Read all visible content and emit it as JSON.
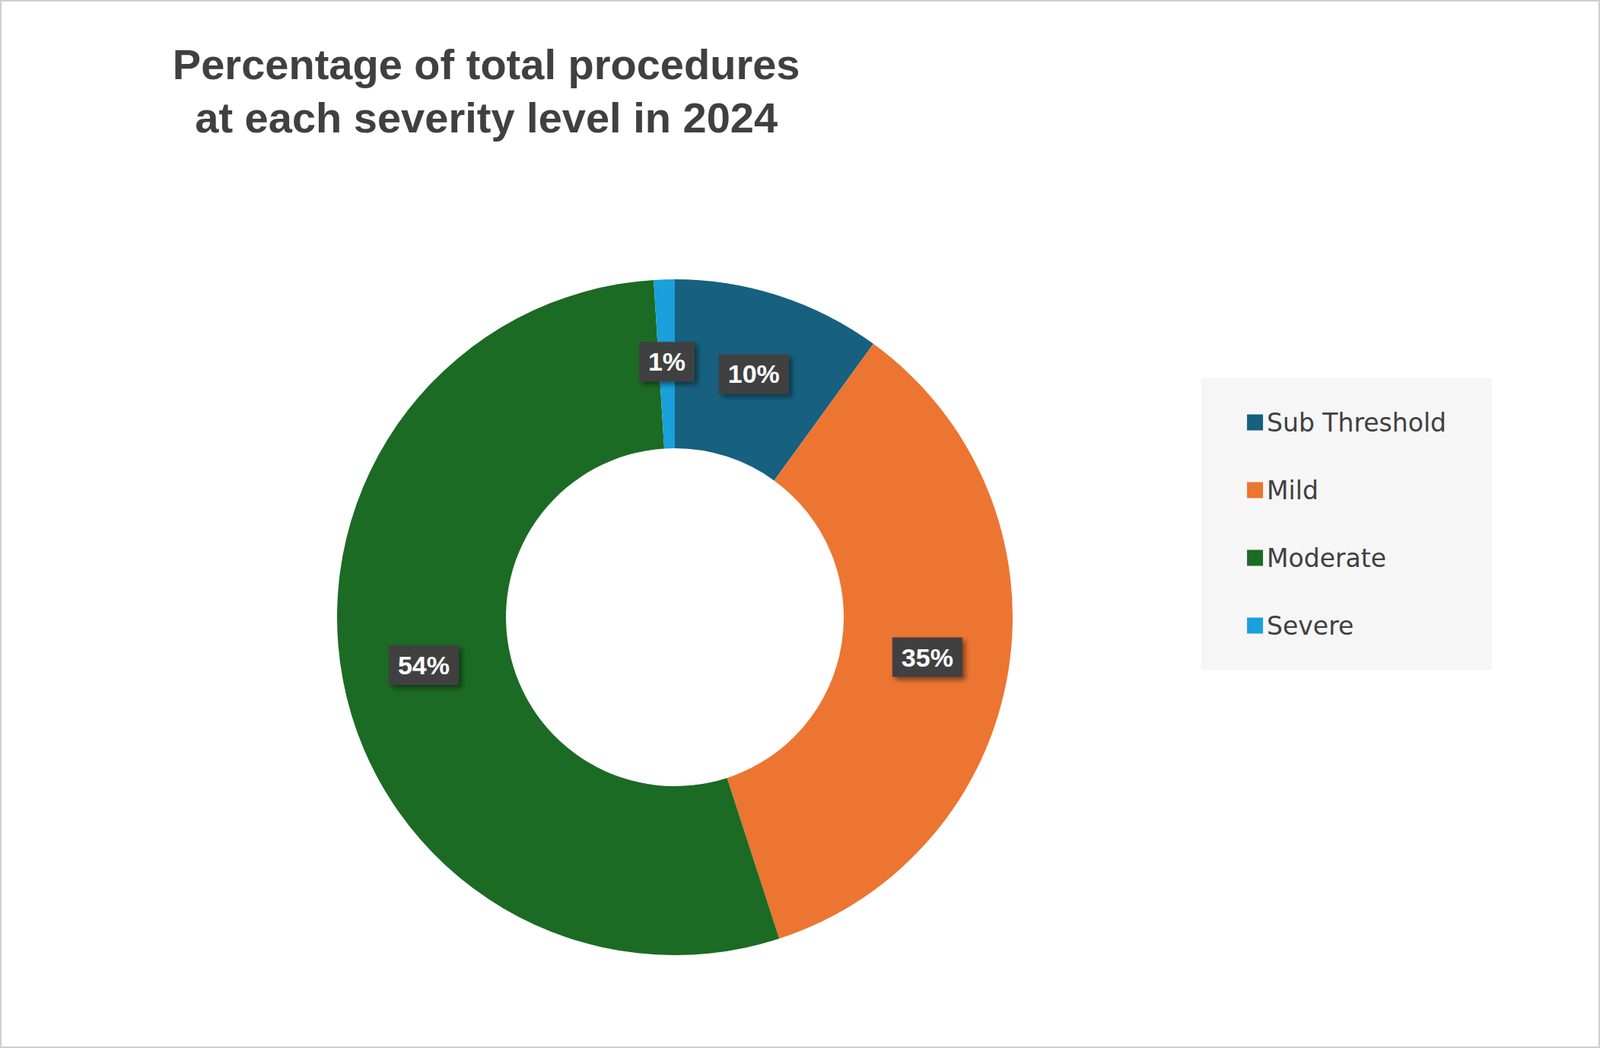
{
  "chart_data": {
    "type": "pie",
    "title": "Percentage of total procedures\nat each severity level in 2024",
    "categories": [
      "Sub Threshold",
      "Mild",
      "Moderate",
      "Severe"
    ],
    "values": [
      10,
      35,
      54,
      1
    ],
    "value_labels": [
      "10%",
      "35%",
      "54%",
      "1%"
    ],
    "colors": [
      "#17607f",
      "#ec7532",
      "#1b6b24",
      "#1aa0da"
    ],
    "data_labels": true,
    "legend": "right"
  }
}
